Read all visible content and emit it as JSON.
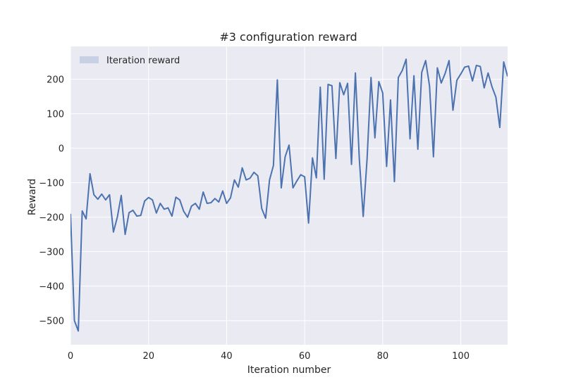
{
  "chart_data": {
    "type": "line",
    "title": "#3 configuration reward",
    "xlabel": "Iteration number",
    "ylabel": "Reward",
    "xlim": [
      0,
      112
    ],
    "ylim": [
      -570,
      295
    ],
    "x_ticks": [
      0,
      20,
      40,
      60,
      80,
      100
    ],
    "y_ticks": [
      -500,
      -400,
      -300,
      -200,
      -100,
      0,
      100,
      200
    ],
    "grid": true,
    "legend_position": "top-left",
    "colors": {
      "line": "#4c72b0",
      "plot_bg": "#eaeaf2",
      "grid": "#ffffff",
      "legend_patch": "#c8d1e3"
    },
    "series": [
      {
        "name": "Iteration reward",
        "x": [
          0,
          1,
          2,
          3,
          4,
          5,
          6,
          7,
          8,
          9,
          10,
          11,
          12,
          13,
          14,
          15,
          16,
          17,
          18,
          19,
          20,
          21,
          22,
          23,
          24,
          25,
          26,
          27,
          28,
          29,
          30,
          31,
          32,
          33,
          34,
          35,
          36,
          37,
          38,
          39,
          40,
          41,
          42,
          43,
          44,
          45,
          46,
          47,
          48,
          49,
          50,
          51,
          52,
          53,
          54,
          55,
          56,
          57,
          58,
          59,
          60,
          61,
          62,
          63,
          64,
          65,
          66,
          67,
          68,
          69,
          70,
          71,
          72,
          73,
          74,
          75,
          76,
          77,
          78,
          79,
          80,
          81,
          82,
          83,
          84,
          85,
          86,
          87,
          88,
          89,
          90,
          91,
          92,
          93,
          94,
          95,
          96,
          97,
          98,
          99,
          100,
          101,
          102,
          103,
          104,
          105,
          106,
          107,
          108,
          109,
          110,
          111,
          112
        ],
        "values": [
          -190,
          -500,
          -530,
          -182,
          -205,
          -74,
          -135,
          -148,
          -133,
          -150,
          -135,
          -243,
          -200,
          -137,
          -250,
          -187,
          -180,
          -197,
          -195,
          -153,
          -143,
          -150,
          -188,
          -160,
          -177,
          -173,
          -197,
          -142,
          -150,
          -183,
          -200,
          -168,
          -160,
          -177,
          -127,
          -160,
          -158,
          -146,
          -156,
          -124,
          -160,
          -144,
          -92,
          -113,
          -57,
          -92,
          -87,
          -70,
          -80,
          -175,
          -203,
          -92,
          -50,
          198,
          -115,
          -25,
          9,
          -115,
          -95,
          -77,
          -83,
          -217,
          -28,
          -86,
          177,
          -90,
          185,
          181,
          -30,
          190,
          155,
          188,
          -47,
          218,
          -30,
          -198,
          -30,
          205,
          30,
          193,
          160,
          -53,
          140,
          -97,
          205,
          225,
          258,
          27,
          210,
          -3,
          220,
          254,
          180,
          -25,
          233,
          189,
          217,
          254,
          110,
          197,
          215,
          235,
          238,
          195,
          240,
          237,
          175,
          218,
          178,
          148,
          60,
          250,
          208
        ]
      }
    ]
  }
}
